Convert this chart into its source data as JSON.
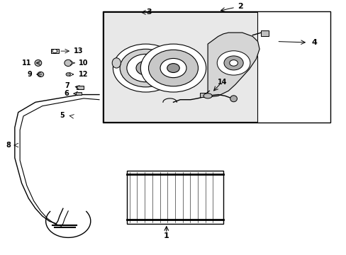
{
  "bg_color": "#ffffff",
  "fig_width": 4.89,
  "fig_height": 3.6,
  "dpi": 100,
  "black": "#000000",
  "gray_light": "#d5d5d5",
  "gray_med": "#c0c0c0",
  "gray_dark": "#999999",
  "label_fontsize": 7,
  "label_fontsize_large": 8
}
